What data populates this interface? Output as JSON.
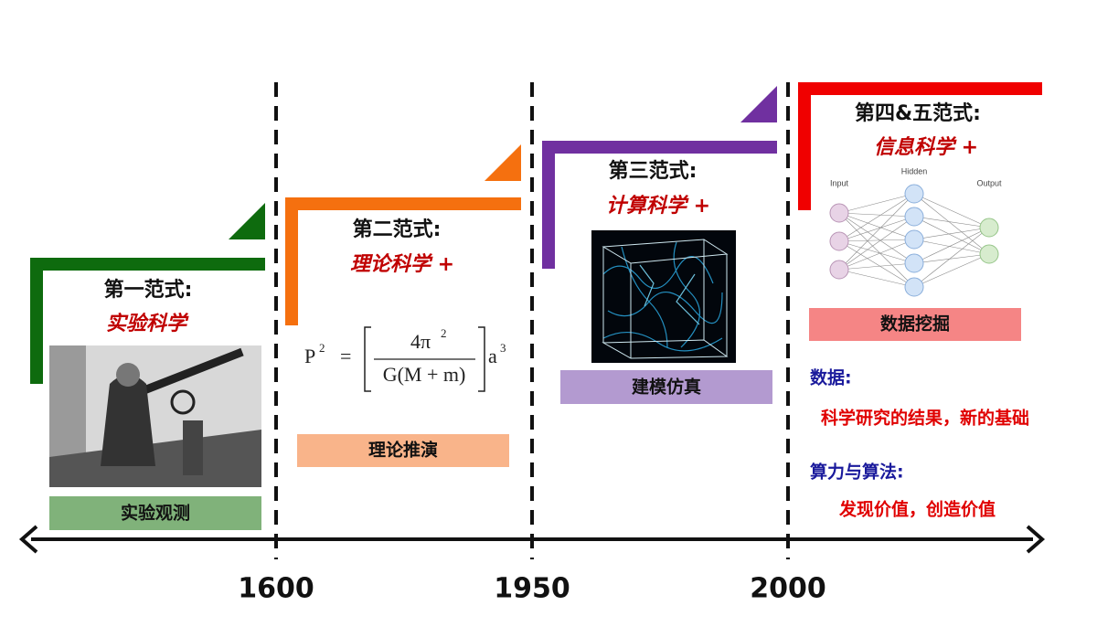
{
  "paradigms": [
    {
      "title": "第一范式:",
      "subtitle": "实验科学",
      "label": "实验观测"
    },
    {
      "title": "第二范式:",
      "subtitle": "理论科学 +",
      "label": "理论推演"
    },
    {
      "title": "第三范式:",
      "subtitle": "计算科学 +",
      "label": "建模仿真"
    },
    {
      "title": "第四&五范式:",
      "subtitle": "信息科学 +",
      "label": "数据挖掘"
    }
  ],
  "formula": {
    "lhs": "P",
    "lhs_exp": "2",
    "eq": "=",
    "numerator": "4π",
    "numerator_exp": "2",
    "denominator": "G(M + m)",
    "rhs": "a",
    "rhs_exp": "3"
  },
  "network": {
    "input": "Input",
    "hidden": "Hidden",
    "output": "Output"
  },
  "notes": [
    {
      "heading": "数据:",
      "text": "科学研究的结果，新的基础"
    },
    {
      "heading": "算力与算法:",
      "text": "发现价值，创造价值"
    }
  ],
  "timeline": {
    "years": [
      "1600",
      "1950",
      "2000"
    ]
  }
}
